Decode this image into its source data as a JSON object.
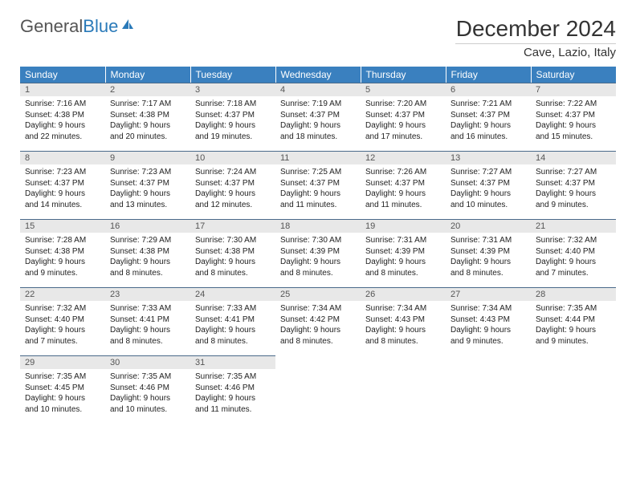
{
  "logo": {
    "text1": "General",
    "text2": "Blue",
    "triangle_color": "#2a7ab9"
  },
  "title": "December 2024",
  "location": "Cave, Lazio, Italy",
  "header_bg": "#3a80bf",
  "daynum_bg": "#e8e8e8",
  "daynum_border": "#4a6a8a",
  "weekdays": [
    "Sunday",
    "Monday",
    "Tuesday",
    "Wednesday",
    "Thursday",
    "Friday",
    "Saturday"
  ],
  "days": [
    {
      "n": 1,
      "sr": "7:16 AM",
      "ss": "4:38 PM",
      "dl": "9 hours and 22 minutes."
    },
    {
      "n": 2,
      "sr": "7:17 AM",
      "ss": "4:38 PM",
      "dl": "9 hours and 20 minutes."
    },
    {
      "n": 3,
      "sr": "7:18 AM",
      "ss": "4:37 PM",
      "dl": "9 hours and 19 minutes."
    },
    {
      "n": 4,
      "sr": "7:19 AM",
      "ss": "4:37 PM",
      "dl": "9 hours and 18 minutes."
    },
    {
      "n": 5,
      "sr": "7:20 AM",
      "ss": "4:37 PM",
      "dl": "9 hours and 17 minutes."
    },
    {
      "n": 6,
      "sr": "7:21 AM",
      "ss": "4:37 PM",
      "dl": "9 hours and 16 minutes."
    },
    {
      "n": 7,
      "sr": "7:22 AM",
      "ss": "4:37 PM",
      "dl": "9 hours and 15 minutes."
    },
    {
      "n": 8,
      "sr": "7:23 AM",
      "ss": "4:37 PM",
      "dl": "9 hours and 14 minutes."
    },
    {
      "n": 9,
      "sr": "7:23 AM",
      "ss": "4:37 PM",
      "dl": "9 hours and 13 minutes."
    },
    {
      "n": 10,
      "sr": "7:24 AM",
      "ss": "4:37 PM",
      "dl": "9 hours and 12 minutes."
    },
    {
      "n": 11,
      "sr": "7:25 AM",
      "ss": "4:37 PM",
      "dl": "9 hours and 11 minutes."
    },
    {
      "n": 12,
      "sr": "7:26 AM",
      "ss": "4:37 PM",
      "dl": "9 hours and 11 minutes."
    },
    {
      "n": 13,
      "sr": "7:27 AM",
      "ss": "4:37 PM",
      "dl": "9 hours and 10 minutes."
    },
    {
      "n": 14,
      "sr": "7:27 AM",
      "ss": "4:37 PM",
      "dl": "9 hours and 9 minutes."
    },
    {
      "n": 15,
      "sr": "7:28 AM",
      "ss": "4:38 PM",
      "dl": "9 hours and 9 minutes."
    },
    {
      "n": 16,
      "sr": "7:29 AM",
      "ss": "4:38 PM",
      "dl": "9 hours and 8 minutes."
    },
    {
      "n": 17,
      "sr": "7:30 AM",
      "ss": "4:38 PM",
      "dl": "9 hours and 8 minutes."
    },
    {
      "n": 18,
      "sr": "7:30 AM",
      "ss": "4:39 PM",
      "dl": "9 hours and 8 minutes."
    },
    {
      "n": 19,
      "sr": "7:31 AM",
      "ss": "4:39 PM",
      "dl": "9 hours and 8 minutes."
    },
    {
      "n": 20,
      "sr": "7:31 AM",
      "ss": "4:39 PM",
      "dl": "9 hours and 8 minutes."
    },
    {
      "n": 21,
      "sr": "7:32 AM",
      "ss": "4:40 PM",
      "dl": "9 hours and 7 minutes."
    },
    {
      "n": 22,
      "sr": "7:32 AM",
      "ss": "4:40 PM",
      "dl": "9 hours and 7 minutes."
    },
    {
      "n": 23,
      "sr": "7:33 AM",
      "ss": "4:41 PM",
      "dl": "9 hours and 8 minutes."
    },
    {
      "n": 24,
      "sr": "7:33 AM",
      "ss": "4:41 PM",
      "dl": "9 hours and 8 minutes."
    },
    {
      "n": 25,
      "sr": "7:34 AM",
      "ss": "4:42 PM",
      "dl": "9 hours and 8 minutes."
    },
    {
      "n": 26,
      "sr": "7:34 AM",
      "ss": "4:43 PM",
      "dl": "9 hours and 8 minutes."
    },
    {
      "n": 27,
      "sr": "7:34 AM",
      "ss": "4:43 PM",
      "dl": "9 hours and 9 minutes."
    },
    {
      "n": 28,
      "sr": "7:35 AM",
      "ss": "4:44 PM",
      "dl": "9 hours and 9 minutes."
    },
    {
      "n": 29,
      "sr": "7:35 AM",
      "ss": "4:45 PM",
      "dl": "9 hours and 10 minutes."
    },
    {
      "n": 30,
      "sr": "7:35 AM",
      "ss": "4:46 PM",
      "dl": "9 hours and 10 minutes."
    },
    {
      "n": 31,
      "sr": "7:35 AM",
      "ss": "4:46 PM",
      "dl": "9 hours and 11 minutes."
    }
  ],
  "labels": {
    "sunrise": "Sunrise: ",
    "sunset": "Sunset: ",
    "daylight": "Daylight: "
  }
}
